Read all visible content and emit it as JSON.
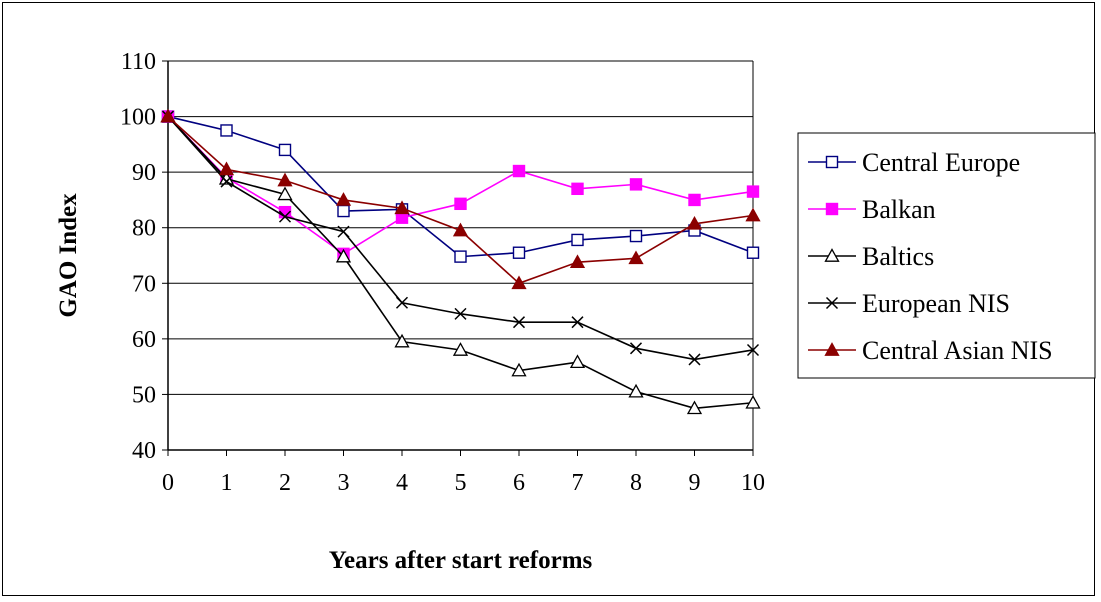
{
  "chart_data": {
    "type": "line",
    "title": "",
    "xlabel": "Years after start reforms",
    "ylabel": "GAO Index",
    "x": [
      0,
      1,
      2,
      3,
      4,
      5,
      6,
      7,
      8,
      9,
      10
    ],
    "xlim": [
      0,
      10
    ],
    "ylim": [
      40,
      110
    ],
    "yticks": [
      40,
      50,
      60,
      70,
      80,
      90,
      100,
      110
    ],
    "grid": "horizontal",
    "legend_position": "right",
    "series": [
      {
        "name": "Central Europe",
        "color": "#000080",
        "marker": "open-square",
        "values": [
          100,
          97.5,
          94,
          83,
          83.3,
          74.8,
          75.5,
          77.8,
          78.5,
          79.5,
          75.5
        ]
      },
      {
        "name": "Balkan",
        "color": "#ff00ff",
        "marker": "filled-square",
        "values": [
          100,
          89,
          82.8,
          75.3,
          81.8,
          84.3,
          90.2,
          87,
          87.8,
          85,
          86.5
        ]
      },
      {
        "name": "Baltics",
        "color": "#000000",
        "marker": "open-triangle",
        "values": [
          100,
          88.8,
          86,
          74.8,
          59.5,
          58,
          54.3,
          55.8,
          50.5,
          47.5,
          48.5
        ]
      },
      {
        "name": "European NIS",
        "color": "#000000",
        "marker": "x",
        "values": [
          100,
          88.3,
          82,
          79.3,
          66.5,
          64.5,
          63,
          63,
          58.3,
          56.3,
          58
        ]
      },
      {
        "name": "Central Asian NIS",
        "color": "#8b0000",
        "marker": "filled-triangle",
        "values": [
          100,
          90.5,
          88.5,
          85,
          83.5,
          79.5,
          70,
          73.8,
          74.5,
          80.7,
          82.2
        ]
      }
    ]
  }
}
